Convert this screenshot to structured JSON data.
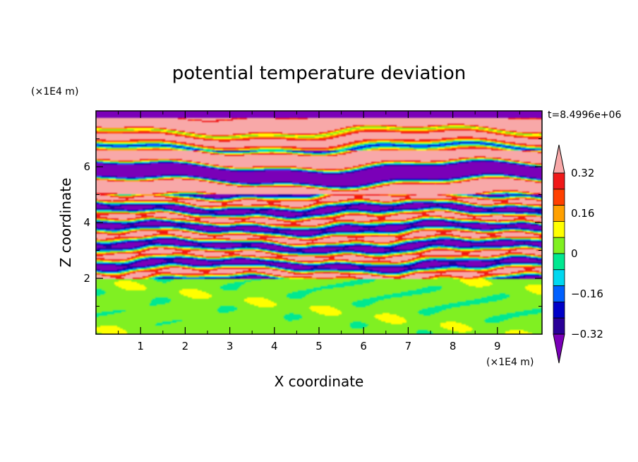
{
  "chart_data": {
    "type": "heatmap",
    "title": "potential temperature deviation",
    "xlabel": "X coordinate",
    "ylabel": "Z coordinate",
    "x_unit": "(×1E4 m)",
    "y_unit": "(×1E4 m)",
    "time_label": "t=8.4996e+06",
    "xlim": [
      0,
      10
    ],
    "ylim": [
      0,
      8
    ],
    "x_ticks": [
      1,
      2,
      3,
      4,
      5,
      6,
      7,
      8,
      9
    ],
    "y_ticks": [
      2,
      4,
      6
    ],
    "x_tick_labels": [
      "1",
      "2",
      "3",
      "4",
      "5",
      "6",
      "7",
      "8",
      "9"
    ],
    "y_tick_labels": [
      "2",
      "4",
      "6"
    ],
    "colorbar": {
      "levels": [
        -0.4,
        -0.32,
        -0.24,
        -0.16,
        -0.08,
        0,
        0.08,
        0.16,
        0.24,
        0.32,
        0.4
      ],
      "tick_values": [
        -0.32,
        -0.16,
        0,
        0.16,
        0.32
      ],
      "tick_labels": [
        "−0.32",
        "−0.16",
        "0",
        "0.16",
        "0.32"
      ],
      "colors": [
        "#7a00b8",
        "#2a0098",
        "#0000c8",
        "#0060ff",
        "#00d8f0",
        "#00e890",
        "#80f020",
        "#ffff00",
        "#ffa000",
        "#ff4000",
        "#f01818",
        "#f8a8a8"
      ],
      "extend": "both"
    },
    "bands": [
      {
        "z": [
          7.75,
          8.0
        ],
        "dominant": "below -0.4",
        "mix": "above 0.4"
      },
      {
        "z": [
          6.6,
          7.75
        ],
        "dominant": "above 0.4",
        "mix": "below -0.4"
      },
      {
        "z": [
          5.0,
          6.6
        ],
        "dominant": "alternating above 0.4 / below -0.4",
        "mix": "full range"
      },
      {
        "z": [
          2.0,
          5.0
        ],
        "dominant": "full range",
        "mix": "full range"
      },
      {
        "z": [
          0.0,
          2.0
        ],
        "dominant": "0 to 0.08",
        "mix": "0.08 to 0.16"
      }
    ]
  }
}
